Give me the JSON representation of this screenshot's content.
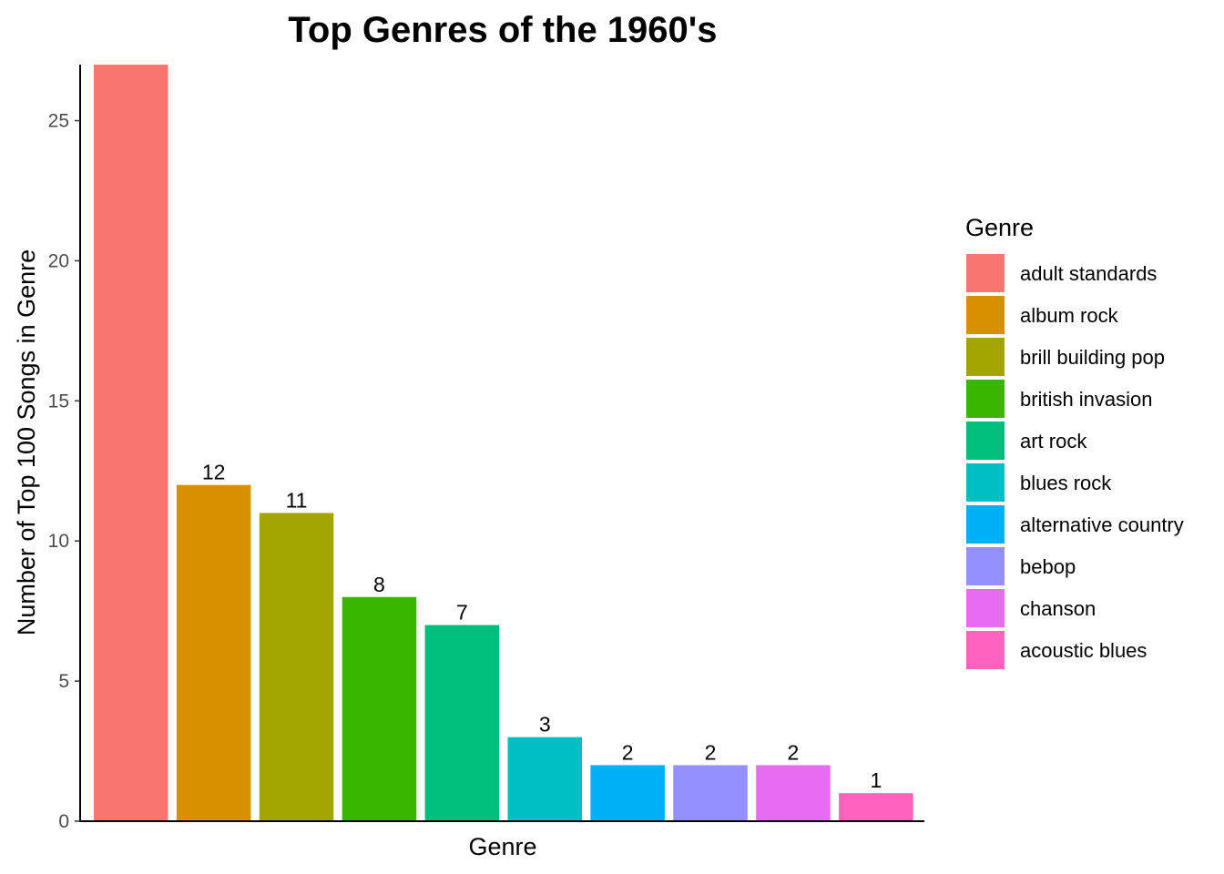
{
  "chart_data": {
    "type": "bar",
    "title": "Top Genres of the 1960's",
    "xlabel": "Genre",
    "ylabel": "Number of Top 100 Songs in Genre",
    "ylim": [
      0,
      27
    ],
    "yticks": [
      0,
      5,
      10,
      15,
      20,
      25
    ],
    "grid": false,
    "legend_title": "Genre",
    "legend_position": "right",
    "categories": [
      "adult standards",
      "album rock",
      "brill building pop",
      "british invasion",
      "art rock",
      "blues rock",
      "alternative country",
      "bebop",
      "chanson",
      "acoustic blues"
    ],
    "values": [
      27,
      12,
      11,
      8,
      7,
      3,
      2,
      2,
      2,
      1
    ],
    "data_labels": [
      "",
      "12",
      "11",
      "8",
      "7",
      "3",
      "2",
      "2",
      "2",
      "1"
    ],
    "colors": [
      "#F8766D",
      "#D89000",
      "#A3A500",
      "#39B600",
      "#00BF7D",
      "#00BFC4",
      "#00B0F6",
      "#9590FF",
      "#E76BF3",
      "#FF62BC"
    ]
  }
}
